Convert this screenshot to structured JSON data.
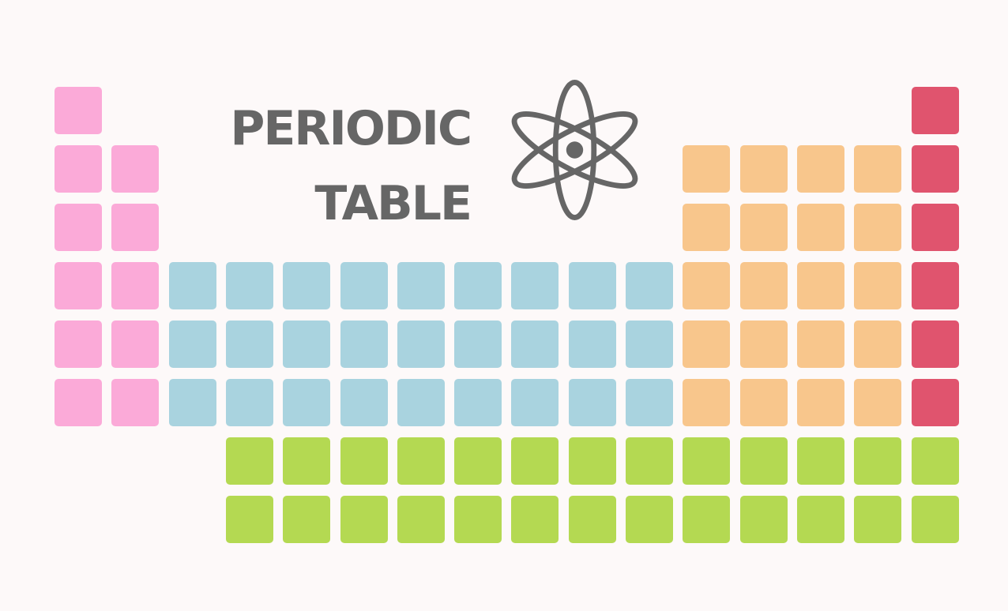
{
  "title": {
    "line1": "PERIODIC",
    "line2": "TABLE"
  },
  "icon": "atom-icon",
  "colors": {
    "background": "#fdf9f9",
    "text": "#666666",
    "alkali": "#fbaad8",
    "transition": "#a9d3df",
    "post_transition": "#f8c68c",
    "noble": "#e0546e",
    "lanthanide_actinide": "#b4d952"
  },
  "grid": {
    "groups": [
      {
        "name": "pink",
        "color_key": "alkali",
        "cells": [
          [
            1,
            1
          ],
          [
            1,
            2
          ],
          [
            2,
            2
          ],
          [
            1,
            3
          ],
          [
            2,
            3
          ],
          [
            1,
            4
          ],
          [
            2,
            4
          ],
          [
            1,
            5
          ],
          [
            2,
            5
          ],
          [
            1,
            6
          ],
          [
            2,
            6
          ]
        ]
      },
      {
        "name": "blue",
        "color_key": "transition",
        "cells": [
          [
            3,
            4
          ],
          [
            4,
            4
          ],
          [
            5,
            4
          ],
          [
            6,
            4
          ],
          [
            7,
            4
          ],
          [
            8,
            4
          ],
          [
            9,
            4
          ],
          [
            10,
            4
          ],
          [
            11,
            4
          ],
          [
            3,
            5
          ],
          [
            4,
            5
          ],
          [
            5,
            5
          ],
          [
            6,
            5
          ],
          [
            7,
            5
          ],
          [
            8,
            5
          ],
          [
            9,
            5
          ],
          [
            10,
            5
          ],
          [
            11,
            5
          ],
          [
            3,
            6
          ],
          [
            4,
            6
          ],
          [
            5,
            6
          ],
          [
            6,
            6
          ],
          [
            7,
            6
          ],
          [
            8,
            6
          ],
          [
            9,
            6
          ],
          [
            10,
            6
          ],
          [
            11,
            6
          ]
        ]
      },
      {
        "name": "orange",
        "color_key": "post_transition",
        "cells": [
          [
            12,
            2
          ],
          [
            13,
            2
          ],
          [
            14,
            2
          ],
          [
            15,
            2
          ],
          [
            12,
            3
          ],
          [
            13,
            3
          ],
          [
            14,
            3
          ],
          [
            15,
            3
          ],
          [
            12,
            4
          ],
          [
            13,
            4
          ],
          [
            14,
            4
          ],
          [
            15,
            4
          ],
          [
            12,
            5
          ],
          [
            13,
            5
          ],
          [
            14,
            5
          ],
          [
            15,
            5
          ],
          [
            12,
            6
          ],
          [
            13,
            6
          ],
          [
            14,
            6
          ],
          [
            15,
            6
          ]
        ]
      },
      {
        "name": "red",
        "color_key": "noble",
        "cells": [
          [
            16,
            1
          ],
          [
            16,
            2
          ],
          [
            16,
            3
          ],
          [
            16,
            4
          ],
          [
            16,
            5
          ],
          [
            16,
            6
          ]
        ]
      },
      {
        "name": "green",
        "color_key": "lanthanide_actinide",
        "cells": [
          [
            4,
            7
          ],
          [
            5,
            7
          ],
          [
            6,
            7
          ],
          [
            7,
            7
          ],
          [
            8,
            7
          ],
          [
            9,
            7
          ],
          [
            10,
            7
          ],
          [
            11,
            7
          ],
          [
            12,
            7
          ],
          [
            13,
            7
          ],
          [
            14,
            7
          ],
          [
            15,
            7
          ],
          [
            16,
            7
          ],
          [
            4,
            8
          ],
          [
            5,
            8
          ],
          [
            6,
            8
          ],
          [
            7,
            8
          ],
          [
            8,
            8
          ],
          [
            9,
            8
          ],
          [
            10,
            8
          ],
          [
            11,
            8
          ],
          [
            12,
            8
          ],
          [
            13,
            8
          ],
          [
            14,
            8
          ],
          [
            15,
            8
          ],
          [
            16,
            8
          ]
        ]
      }
    ]
  }
}
